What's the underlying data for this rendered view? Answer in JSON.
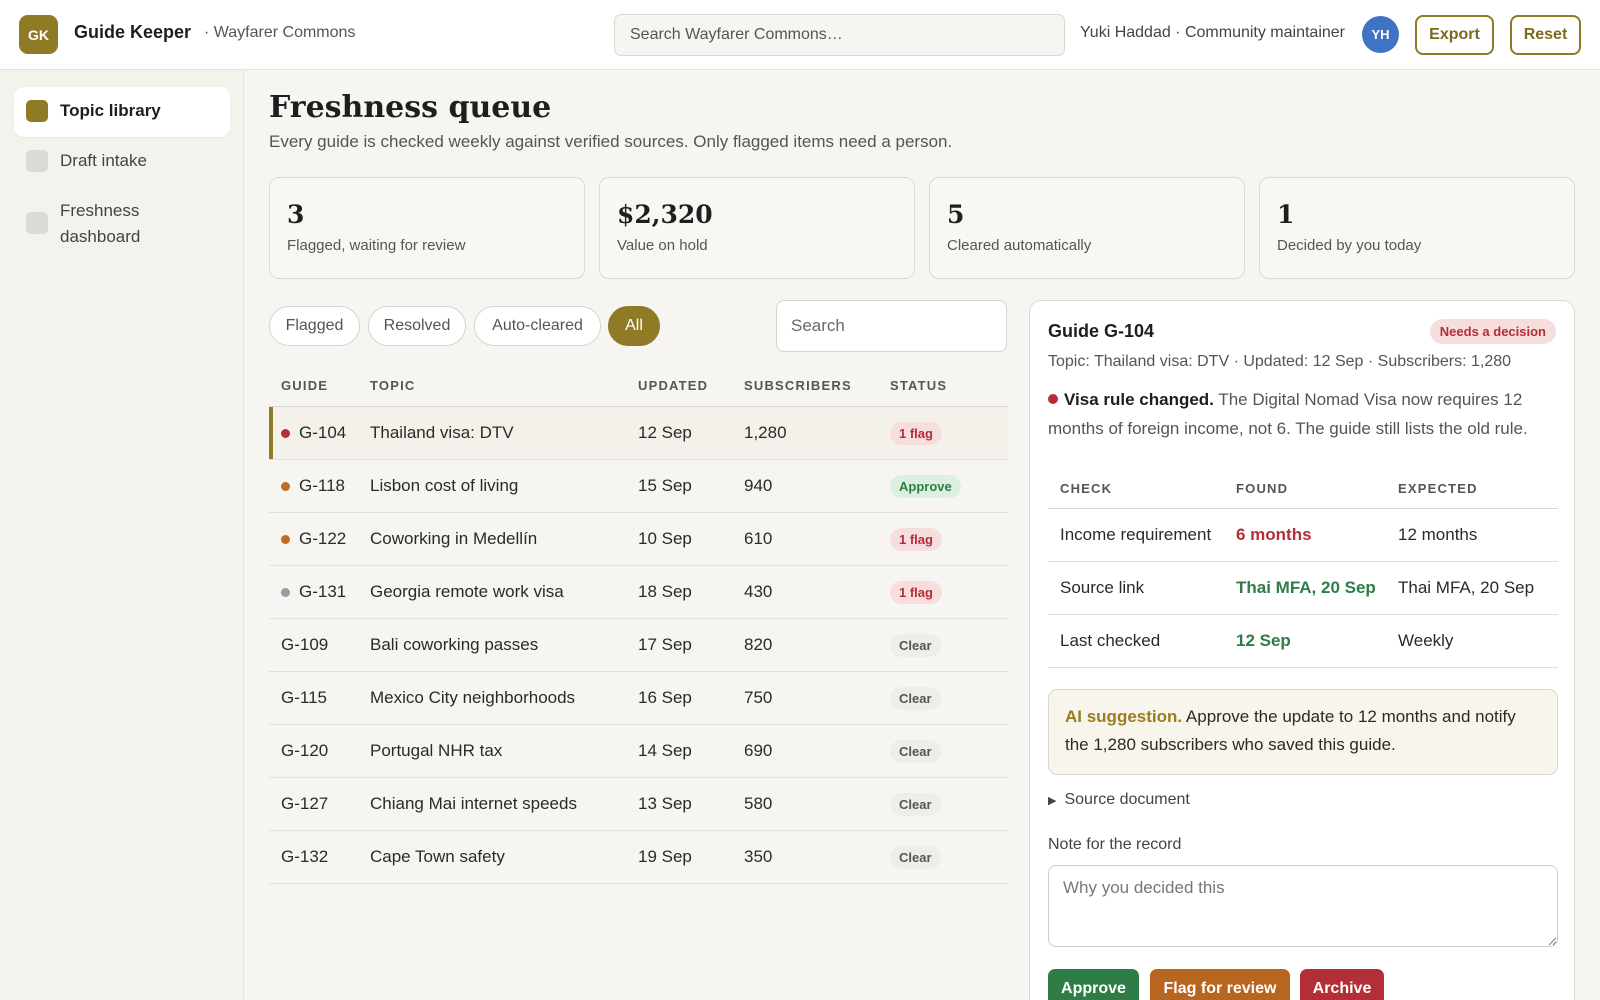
{
  "topbar": {
    "logo": "GK",
    "app_name": "Guide Keeper",
    "workspace": "· Wayfarer Commons",
    "search_placeholder": "Search Wayfarer Commons…",
    "user": "Yuki Haddad · Community maintainer",
    "avatar": "YH",
    "export_label": "Export",
    "reset_label": "Reset"
  },
  "sidebar": {
    "items": [
      {
        "label": "Topic library",
        "active": true
      },
      {
        "label": "Draft intake",
        "active": false
      },
      {
        "label": "Freshness dashboard",
        "active": false
      }
    ]
  },
  "main": {
    "title": "Freshness queue",
    "subtitle": "Every guide is checked weekly against verified sources. Only flagged items need a person.",
    "stats": [
      {
        "value": "3",
        "label": "Flagged, waiting for review"
      },
      {
        "value": "$2,320",
        "label": "Value on hold"
      },
      {
        "value": "5",
        "label": "Cleared automatically"
      },
      {
        "value": "1",
        "label": "Decided by you today"
      }
    ],
    "filters": [
      "Flagged",
      "Resolved",
      "Auto-cleared",
      "All"
    ],
    "active_filter": "All",
    "search_placeholder": "Search"
  },
  "table": {
    "headers": [
      "GUIDE",
      "TOPIC",
      "UPDATED",
      "SUBSCRIBERS",
      "STATUS"
    ],
    "rows": [
      {
        "id": "G-104",
        "topic": "Thailand visa: DTV",
        "updated": "12 Sep",
        "subs": "1,280",
        "status": "1 flag",
        "status_kind": "flag",
        "dot": "#b32e36",
        "selected": true
      },
      {
        "id": "G-118",
        "topic": "Lisbon cost of living",
        "updated": "15 Sep",
        "subs": "940",
        "status": "Approve",
        "status_kind": "approve",
        "dot": "#c46a1e",
        "selected": false
      },
      {
        "id": "G-122",
        "topic": "Coworking in Medellín",
        "updated": "10 Sep",
        "subs": "610",
        "status": "1 flag",
        "status_kind": "flag",
        "dot": "#c46a1e",
        "selected": false
      },
      {
        "id": "G-131",
        "topic": "Georgia remote work visa",
        "updated": "18 Sep",
        "subs": "430",
        "status": "1 flag",
        "status_kind": "flag",
        "dot": "#9b9aa6",
        "selected": false
      },
      {
        "id": "G-109",
        "topic": "Bali coworking passes",
        "updated": "17 Sep",
        "subs": "820",
        "status": "Clear",
        "status_kind": "clear",
        "dot": "",
        "selected": false
      },
      {
        "id": "G-115",
        "topic": "Mexico City neighborhoods",
        "updated": "16 Sep",
        "subs": "750",
        "status": "Clear",
        "status_kind": "clear",
        "dot": "",
        "selected": false
      },
      {
        "id": "G-120",
        "topic": "Portugal NHR tax",
        "updated": "14 Sep",
        "subs": "690",
        "status": "Clear",
        "status_kind": "clear",
        "dot": "",
        "selected": false
      },
      {
        "id": "G-127",
        "topic": "Chiang Mai internet speeds",
        "updated": "13 Sep",
        "subs": "580",
        "status": "Clear",
        "status_kind": "clear",
        "dot": "",
        "selected": false
      },
      {
        "id": "G-132",
        "topic": "Cape Town safety",
        "updated": "19 Sep",
        "subs": "350",
        "status": "Clear",
        "status_kind": "clear",
        "dot": "",
        "selected": false
      }
    ]
  },
  "detail": {
    "title": "Guide G-104",
    "badge": "Needs a decision",
    "meta": "Topic: Thailand visa: DTV · Updated: 12 Sep · Subscribers: 1,280",
    "alert_title": "Visa rule changed.",
    "alert_text": "The Digital Nomad Visa now requires 12 months of foreign income, not 6. The guide still lists the old rule.",
    "check_headers": [
      "CHECK",
      "FOUND",
      "EXPECTED"
    ],
    "checks": [
      {
        "check": "Income requirement",
        "found": "6 months",
        "found_kind": "bad",
        "expected": "12 months"
      },
      {
        "check": "Source link",
        "found": "Thai MFA, 20 Sep",
        "found_kind": "ok",
        "expected": "Thai MFA, 20 Sep"
      },
      {
        "check": "Last checked",
        "found": "12 Sep",
        "found_kind": "ok",
        "expected": "Weekly"
      }
    ],
    "ai_label": "AI suggestion.",
    "ai_text": "Approve the update to 12 months and notify the 1,280 subscribers who saved this guide.",
    "source_label": "Source document",
    "note_label": "Note for the record",
    "note_placeholder": "Why you decided this",
    "actions": {
      "approve": "Approve",
      "flag": "Flag for review",
      "archive": "Archive"
    }
  },
  "colors": {
    "accent": "#8f7a25",
    "danger": "#b32e36",
    "success": "#2e7d47",
    "warning": "#b8651f",
    "avatar": "#3f73c4"
  }
}
